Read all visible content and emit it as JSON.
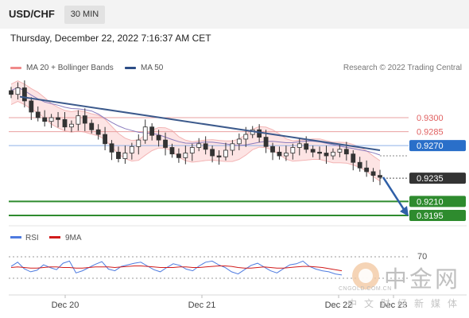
{
  "header": {
    "pair": "USD/CHF",
    "timeframe": "30 MIN"
  },
  "datetime": "Thursday, December 22, 2022 7:16:37 AM CET",
  "legend": [
    {
      "label": "MA 20 + Bollinger Bands",
      "color": "#f08a8a"
    },
    {
      "label": "MA 50",
      "color": "#2c4d86"
    }
  ],
  "copyright": "Research © 2022 Trading Central",
  "colors": {
    "up": "#ffffff",
    "down": "#333333",
    "band": "#fde4e4",
    "support": "#2e8b2e",
    "resistance": "#e06060",
    "current": "#2a6fc9",
    "trend": "#3c5a8c"
  },
  "chart_data": [
    {
      "type": "candlestick",
      "x_ticks": [
        "Dec 20",
        "Dec 21",
        "Dec 22",
        "Dec 23"
      ],
      "levels": [
        {
          "value": 0.93,
          "label": "0.9300",
          "kind": "resistance"
        },
        {
          "value": 0.9285,
          "label": "0.9285",
          "kind": "resistance"
        },
        {
          "value": 0.927,
          "label": "0.9270",
          "kind": "current-ma"
        },
        {
          "value": 0.9235,
          "label": "0.9235",
          "kind": "last-price"
        },
        {
          "value": 0.921,
          "label": "0.9210",
          "kind": "support"
        },
        {
          "value": 0.9195,
          "label": "0.9195",
          "kind": "support"
        }
      ],
      "trend": "down",
      "close_path": [
        0.9325,
        0.9332,
        0.9318,
        0.9306,
        0.93,
        0.9296,
        0.93,
        0.9298,
        0.929,
        0.9293,
        0.9302,
        0.9294,
        0.9287,
        0.9282,
        0.9272,
        0.9263,
        0.9256,
        0.9262,
        0.9269,
        0.9276,
        0.929,
        0.9281,
        0.9276,
        0.9268,
        0.9261,
        0.9257,
        0.9262,
        0.9268,
        0.9272,
        0.9266,
        0.9259,
        0.9258,
        0.9265,
        0.9272,
        0.9277,
        0.9282,
        0.9287,
        0.9279,
        0.9269,
        0.9263,
        0.9259,
        0.9262,
        0.9268,
        0.9272,
        0.9266,
        0.9263,
        0.9262,
        0.9259,
        0.9263,
        0.9266,
        0.9261,
        0.9252,
        0.9246,
        0.9242,
        0.9238,
        0.9236
      ]
    },
    {
      "type": "line",
      "name": "RSI",
      "legend": [
        {
          "label": "RSI",
          "color": "#4e7be0"
        },
        {
          "label": "9MA",
          "color": "#d11b1b"
        }
      ],
      "ref_levels": [
        70,
        30
      ],
      "rsi": [
        52,
        60,
        48,
        42,
        45,
        55,
        50,
        46,
        58,
        62,
        40,
        44,
        50,
        56,
        61,
        47,
        44,
        52,
        55,
        58,
        60,
        53,
        46,
        42,
        50,
        57,
        54,
        47,
        44,
        53,
        60,
        62,
        55,
        50,
        42,
        38,
        46,
        54,
        58,
        51,
        44,
        40,
        48,
        55,
        57,
        62,
        52,
        47,
        44,
        42,
        38,
        36
      ],
      "ma9": [
        50,
        51,
        50,
        49,
        49,
        50,
        51,
        51,
        50,
        50,
        49,
        49,
        50,
        51,
        51,
        51,
        50,
        51,
        52,
        53,
        53,
        52,
        51,
        50,
        50,
        50,
        51,
        51,
        50,
        50,
        51,
        52,
        53,
        53,
        52,
        50,
        49,
        49,
        50,
        51,
        50,
        49,
        49,
        50,
        51,
        52,
        52,
        51,
        50,
        48,
        46,
        44
      ]
    }
  ],
  "watermark": {
    "cn": "中金网",
    "url": "CNGOLD.COM.CN",
    "sub": "中文财经新媒体"
  }
}
